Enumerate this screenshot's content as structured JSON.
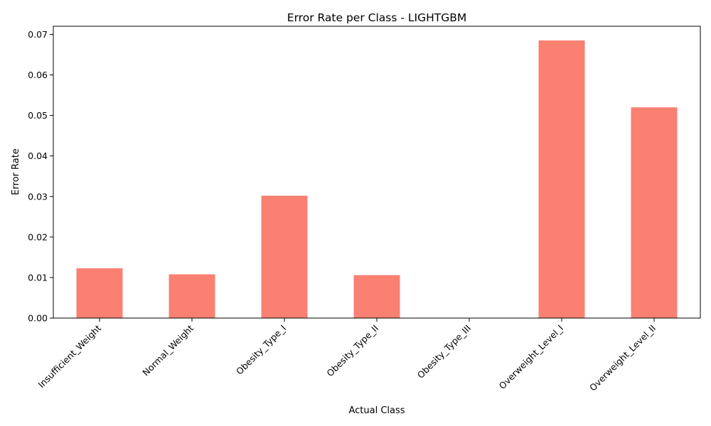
{
  "chart_data": {
    "type": "bar",
    "title": "Error Rate per Class - LIGHTGBM",
    "xlabel": "Actual Class",
    "ylabel": "Error Rate",
    "categories": [
      "Insufficient_Weight",
      "Normal_Weight",
      "Obesity_Type_I",
      "Obesity_Type_II",
      "Obesity_Type_III",
      "Overweight_Level_I",
      "Overweight_Level_II"
    ],
    "values": [
      0.0123,
      0.0108,
      0.0302,
      0.0106,
      0.0,
      0.0685,
      0.052
    ],
    "ylim": [
      0,
      0.072
    ],
    "yticks": [
      "0.00",
      "0.01",
      "0.02",
      "0.03",
      "0.04",
      "0.05",
      "0.06",
      "0.07"
    ],
    "bar_color": "#fa8072",
    "grid": false,
    "legend": "none"
  }
}
